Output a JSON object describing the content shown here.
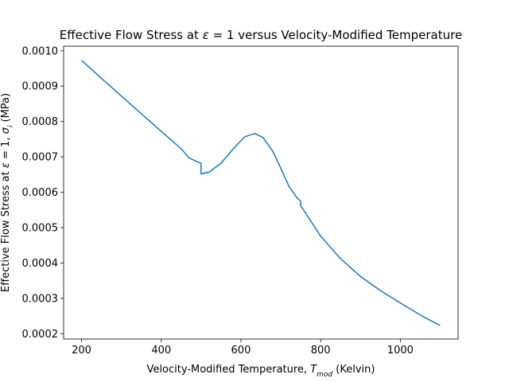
{
  "chart_data": {
    "type": "line",
    "title_parts": [
      "Effective Flow Stress at ",
      "ε",
      " = 1 versus Velocity-Modified Temperature"
    ],
    "xlabel_parts": [
      "Velocity-Modified Temperature, ",
      "T",
      "mod",
      " (Kelvin)"
    ],
    "ylabel_parts": [
      "Effective Flow Stress at ",
      "ε",
      " = 1, ",
      "σ",
      "i",
      " (MPa)"
    ],
    "xlim": [
      155,
      1145
    ],
    "ylim": [
      0.000185,
      0.001013
    ],
    "xticks": [
      200,
      400,
      600,
      800,
      1000
    ],
    "yticks": [
      0.0002,
      0.0003,
      0.0004,
      0.0005,
      0.0006,
      0.0007,
      0.0008,
      0.0009,
      0.001
    ],
    "ytick_labels": [
      "0.0002",
      "0.0003",
      "0.0004",
      "0.0005",
      "0.0006",
      "0.0007",
      "0.0008",
      "0.0009",
      "0.0010"
    ],
    "grid": false,
    "series": [
      {
        "color": "#1f77b4",
        "x": [
          200,
          250,
          300,
          350,
          400,
          450,
          470,
          490,
          500,
          500,
          520,
          550,
          580,
          610,
          635,
          655,
          680,
          700,
          720,
          740,
          750,
          750,
          800,
          850,
          900,
          950,
          1000,
          1050,
          1100
        ],
        "y": [
          0.000973,
          0.000922,
          0.000872,
          0.000822,
          0.000772,
          0.000723,
          0.000697,
          0.000686,
          0.000682,
          0.000652,
          0.000657,
          0.000682,
          0.000722,
          0.000757,
          0.000766,
          0.000755,
          0.000716,
          0.000668,
          0.000618,
          0.000585,
          0.000575,
          0.000562,
          0.000476,
          0.000412,
          0.000362,
          0.000322,
          0.000287,
          0.000253,
          0.000223
        ]
      }
    ]
  }
}
